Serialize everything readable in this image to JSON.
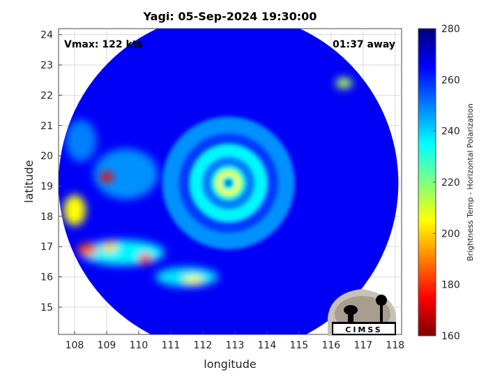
{
  "chart_data": {
    "type": "heatmap",
    "title": "Yagi: 05-Sep-2024 19:30:00",
    "xlabel": "longitude",
    "ylabel": "latitude",
    "xlim": [
      107.5,
      118.2
    ],
    "ylim": [
      14.1,
      24.2
    ],
    "xticks": [
      108,
      109,
      110,
      111,
      112,
      113,
      114,
      115,
      116,
      117,
      118
    ],
    "yticks": [
      15,
      16,
      17,
      18,
      19,
      20,
      21,
      22,
      23,
      24
    ],
    "grid": true,
    "storm_center": {
      "lon": 112.8,
      "lat": 19.1
    },
    "swath_radius_deg": 5.3,
    "annotations": {
      "vmax": "Vmax: 122 kts",
      "time_offset": "01:37 away"
    },
    "colorbar": {
      "label": "Brightness Temp - Horizontal Polarization",
      "min": 160,
      "max": 280,
      "ticks": [
        160,
        180,
        200,
        220,
        240,
        260,
        280
      ],
      "colormap": "jet"
    },
    "logo": "CIMSS"
  }
}
